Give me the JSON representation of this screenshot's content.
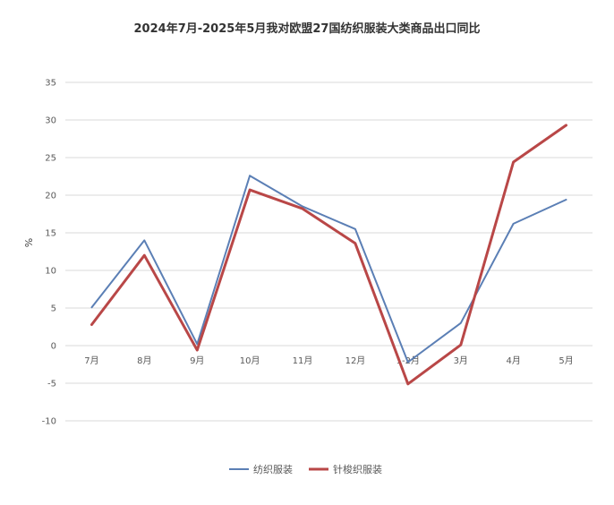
{
  "chart_data": {
    "type": "line",
    "title": "2024年7月-2025年5月我对欧盟27国纺织服装大类商品出口同比",
    "xlabel": "",
    "ylabel": "%",
    "categories": [
      "7月",
      "8月",
      "9月",
      "10月",
      "11月",
      "12月",
      "1-2月",
      "3月",
      "4月",
      "5月"
    ],
    "ylim": [
      -10,
      35
    ],
    "yticks": [
      35,
      30,
      25,
      20,
      15,
      10,
      5,
      0,
      -5,
      -10
    ],
    "grid": true,
    "legend_position": "bottom",
    "series": [
      {
        "name": "纺织服装",
        "color": "#5b7fb5",
        "values": [
          5.1,
          14.0,
          0.2,
          22.6,
          18.5,
          15.5,
          -2.2,
          3.0,
          16.2,
          19.4
        ]
      },
      {
        "name": "针梭织服装",
        "color": "#b94747",
        "values": [
          2.8,
          12.0,
          -0.6,
          20.7,
          18.2,
          13.6,
          -5.1,
          0.1,
          24.4,
          29.3
        ]
      }
    ]
  }
}
